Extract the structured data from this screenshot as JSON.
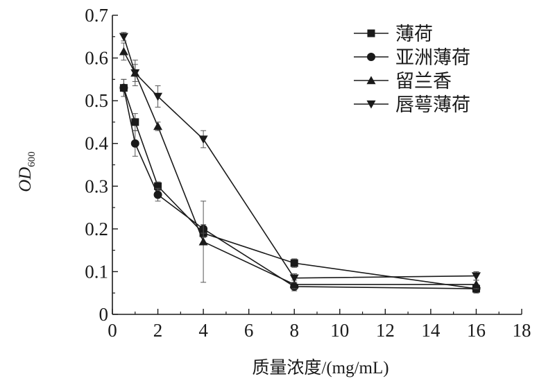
{
  "chart_data": {
    "type": "line",
    "xlabel": "质量浓度/(mg/mL)",
    "ylabel": "OD",
    "ylabel_subscript": "600",
    "xlim": [
      0,
      18
    ],
    "ylim": [
      0,
      0.7
    ],
    "x_ticks": [
      "0",
      "2",
      "4",
      "6",
      "8",
      "10",
      "12",
      "14",
      "16",
      "18"
    ],
    "y_ticks": [
      "0",
      "0.1",
      "0.2",
      "0.3",
      "0.4",
      "0.5",
      "0.6",
      "0.7"
    ],
    "grid": false,
    "legend_position": "top-right",
    "series": [
      {
        "name": "薄荷",
        "marker": "square",
        "x": [
          0.5,
          1,
          2,
          4,
          8,
          16
        ],
        "y": [
          0.53,
          0.45,
          0.3,
          0.19,
          0.12,
          0.06
        ],
        "err": [
          0.02,
          0.02,
          0.01,
          0.01,
          0.01,
          0.01
        ]
      },
      {
        "name": "亚洲薄荷",
        "marker": "circle",
        "x": [
          0.5,
          1,
          2,
          4,
          8,
          16
        ],
        "y": [
          0.53,
          0.4,
          0.28,
          0.2,
          0.065,
          0.06
        ],
        "err": [
          0.02,
          0.03,
          0.015,
          0.01,
          0.01,
          0.01
        ]
      },
      {
        "name": "留兰香",
        "marker": "triangle-up",
        "x": [
          0.5,
          1,
          2,
          4,
          8,
          16
        ],
        "y": [
          0.615,
          0.565,
          0.44,
          0.17,
          0.07,
          0.07
        ],
        "err": [
          0.02,
          0.02,
          0.01,
          0.095,
          0.01,
          0.01
        ]
      },
      {
        "name": "唇萼薄荷",
        "marker": "triangle-down",
        "x": [
          0.5,
          1,
          2,
          4,
          8,
          16
        ],
        "y": [
          0.65,
          0.565,
          0.51,
          0.41,
          0.085,
          0.09
        ],
        "err": [
          0.01,
          0.03,
          0.025,
          0.02,
          0.01,
          0.01
        ]
      }
    ]
  }
}
